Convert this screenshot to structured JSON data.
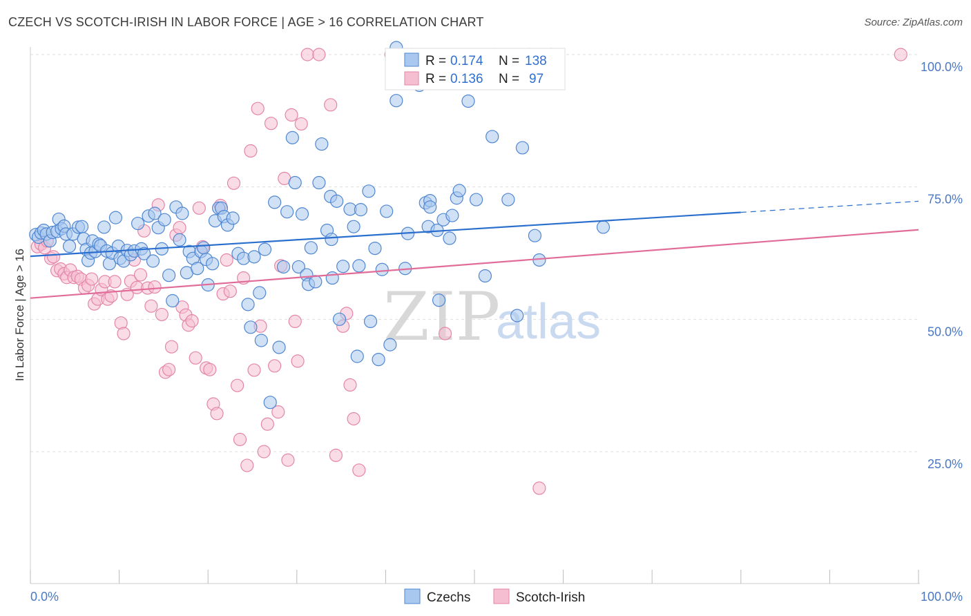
{
  "header": {
    "title": "CZECH VS SCOTCH-IRISH IN LABOR FORCE | AGE > 16 CORRELATION CHART",
    "source": "Source: ZipAtlas.com"
  },
  "watermark": {
    "zip": "ZIP",
    "atlas": "atlas"
  },
  "legend_top": {
    "rows": [
      {
        "r_label": "R = ",
        "r_value": "0.174",
        "n_label": "N = ",
        "n_value": "138"
      },
      {
        "r_label": "R = ",
        "r_value": "0.136",
        "n_label": "N = ",
        "n_value": "97"
      }
    ]
  },
  "legend_bottom": {
    "items": [
      "Czechs",
      "Scotch-Irish"
    ]
  },
  "colors": {
    "czech_fill": "#a9c8ef",
    "czech_stroke": "#4f86d1",
    "czech_line": "#2a6fce",
    "scotch_fill": "#f6bfd1",
    "scotch_stroke": "#e485a8",
    "scotch_line": "#e06c97",
    "grid": "#dddddd",
    "axis_text": "#4a78c2"
  },
  "chart_data": {
    "type": "scatter",
    "title": "CZECH VS SCOTCH-IRISH IN LABOR FORCE | AGE > 16 CORRELATION CHART",
    "xlabel": "",
    "ylabel": "In Labor Force | Age > 16",
    "xlim": [
      0,
      100
    ],
    "ylim": [
      0,
      104
    ],
    "x_tick_labels": [
      "0.0%",
      "100.0%"
    ],
    "y_ticks": [
      25,
      50,
      75,
      100
    ],
    "y_tick_labels": [
      "25.0%",
      "50.0%",
      "75.0%",
      "100.0%"
    ],
    "grid": "horizontal dashed",
    "legend_placement": "top-center and bottom-center",
    "series": [
      {
        "name": "Czechs",
        "r": 0.174,
        "n": 138,
        "trend": {
          "x": [
            0,
            80
          ],
          "y": [
            61.9,
            70.2
          ],
          "dashed_to": [
            100,
            72.3
          ]
        },
        "points": [
          [
            0.6,
            66
          ],
          [
            0.9,
            65.5
          ],
          [
            1.2,
            66.3
          ],
          [
            1.5,
            66.8
          ],
          [
            1.8,
            66.1
          ],
          [
            2.2,
            64.8
          ],
          [
            2.5,
            66.4
          ],
          [
            3,
            66.6
          ],
          [
            3.2,
            68.9
          ],
          [
            3.5,
            67.1
          ],
          [
            3.8,
            67.6
          ],
          [
            4,
            66.1
          ],
          [
            4.4,
            63.8
          ],
          [
            4.8,
            66.1
          ],
          [
            5.4,
            67.4
          ],
          [
            5.8,
            67.5
          ],
          [
            6,
            65.2
          ],
          [
            6.3,
            63.2
          ],
          [
            6.5,
            61.1
          ],
          [
            6.8,
            62.5
          ],
          [
            7,
            64.8
          ],
          [
            7.3,
            62.8
          ],
          [
            7.7,
            64.2
          ],
          [
            7.9,
            63.9
          ],
          [
            8.3,
            67.4
          ],
          [
            8.6,
            62.9
          ],
          [
            8.9,
            60.5
          ],
          [
            9.2,
            62.5
          ],
          [
            9.6,
            69.2
          ],
          [
            9.9,
            63.8
          ],
          [
            10.1,
            61.5
          ],
          [
            10.5,
            61
          ],
          [
            10.9,
            63
          ],
          [
            11.3,
            62.2
          ],
          [
            11.7,
            62.9
          ],
          [
            12.1,
            68.1
          ],
          [
            12.5,
            63.3
          ],
          [
            12.8,
            62.4
          ],
          [
            13.3,
            69.5
          ],
          [
            13.8,
            61
          ],
          [
            14,
            70
          ],
          [
            14.4,
            67.3
          ],
          [
            14.8,
            63.3
          ],
          [
            15.1,
            68.8
          ],
          [
            15.6,
            58.3
          ],
          [
            16,
            53.5
          ],
          [
            16.4,
            71.2
          ],
          [
            16.8,
            65
          ],
          [
            17.1,
            70
          ],
          [
            17.6,
            58.8
          ],
          [
            17.9,
            62.8
          ],
          [
            18.3,
            61.5
          ],
          [
            18.8,
            59.6
          ],
          [
            19.2,
            62.8
          ],
          [
            19.5,
            63.5
          ],
          [
            19.8,
            61.3
          ],
          [
            20,
            56.5
          ],
          [
            20.5,
            60.5
          ],
          [
            20.8,
            68.6
          ],
          [
            21.2,
            71
          ],
          [
            21.5,
            71
          ],
          [
            21.8,
            69.4
          ],
          [
            22.2,
            67.8
          ],
          [
            22.8,
            69.1
          ],
          [
            23.4,
            62.4
          ],
          [
            24,
            61.5
          ],
          [
            24.5,
            52.8
          ],
          [
            24.8,
            48.5
          ],
          [
            25.2,
            61.8
          ],
          [
            25.8,
            55
          ],
          [
            26,
            46
          ],
          [
            26.4,
            63.2
          ],
          [
            27,
            34.3
          ],
          [
            27.5,
            72.1
          ],
          [
            28,
            44.7
          ],
          [
            28.5,
            59.9
          ],
          [
            28.9,
            70.3
          ],
          [
            29.5,
            84.3
          ],
          [
            29.8,
            75.8
          ],
          [
            30.2,
            59.9
          ],
          [
            30.6,
            69.9
          ],
          [
            31.1,
            58.4
          ],
          [
            31.3,
            56.6
          ],
          [
            31.6,
            63.5
          ],
          [
            32.1,
            57.1
          ],
          [
            32.5,
            75.8
          ],
          [
            32.8,
            83.1
          ],
          [
            33.4,
            66.8
          ],
          [
            33.8,
            73.2
          ],
          [
            33.9,
            65.1
          ],
          [
            34,
            57.8
          ],
          [
            34.5,
            72.3
          ],
          [
            34.8,
            50
          ],
          [
            35.2,
            60
          ],
          [
            36,
            70.8
          ],
          [
            36.4,
            67.5
          ],
          [
            36.8,
            43
          ],
          [
            37,
            60.1
          ],
          [
            37.2,
            70.7
          ],
          [
            38.1,
            74.2
          ],
          [
            38.3,
            49.6
          ],
          [
            38.8,
            63.4
          ],
          [
            39.2,
            42.4
          ],
          [
            39.6,
            59.4
          ],
          [
            40.1,
            70.4
          ],
          [
            40.5,
            45.2
          ],
          [
            41.2,
            91.3
          ],
          [
            42.2,
            59.6
          ],
          [
            42.5,
            66.2
          ],
          [
            43.8,
            94.2
          ],
          [
            44.5,
            72
          ],
          [
            44.8,
            67.5
          ],
          [
            45,
            72.4
          ],
          [
            45,
            71.2
          ],
          [
            45.8,
            66.8
          ],
          [
            46,
            53.6
          ],
          [
            46.5,
            68.8
          ],
          [
            47.2,
            65.3
          ],
          [
            47.5,
            69.6
          ],
          [
            48,
            72.9
          ],
          [
            48.3,
            74.3
          ],
          [
            49.3,
            91.2
          ],
          [
            50.2,
            72.6
          ],
          [
            51.2,
            58.2
          ],
          [
            52,
            84.5
          ],
          [
            53.8,
            72.6
          ],
          [
            54.8,
            50.7
          ],
          [
            55.4,
            82.4
          ],
          [
            56.8,
            65.8
          ],
          [
            57.3,
            61.2
          ],
          [
            58.6,
            100
          ],
          [
            64.5,
            67.4
          ],
          [
            41.2,
            101.3
          ]
        ]
      },
      {
        "name": "Scotch-Irish",
        "r": 0.136,
        "n": 97,
        "trend": {
          "x": [
            0,
            100
          ],
          "y": [
            54,
            66.9
          ]
        },
        "points": [
          [
            0.8,
            63.7
          ],
          [
            1.2,
            64.2
          ],
          [
            1.6,
            63.5
          ],
          [
            1.9,
            64.8
          ],
          [
            2.3,
            61.5
          ],
          [
            2.6,
            61.8
          ],
          [
            3,
            59.2
          ],
          [
            3.4,
            59.5
          ],
          [
            3.8,
            58.6
          ],
          [
            4.1,
            57.9
          ],
          [
            4.5,
            59.3
          ],
          [
            4.9,
            57.9
          ],
          [
            5.3,
            58.1
          ],
          [
            5.7,
            57.6
          ],
          [
            6.1,
            55.9
          ],
          [
            6.5,
            56.4
          ],
          [
            6.9,
            57.6
          ],
          [
            7.2,
            52.9
          ],
          [
            7.6,
            53.8
          ],
          [
            8,
            55.6
          ],
          [
            8.4,
            57.1
          ],
          [
            8.7,
            53.8
          ],
          [
            9.1,
            54.4
          ],
          [
            9.5,
            57.1
          ],
          [
            10.2,
            49.3
          ],
          [
            10.5,
            47.3
          ],
          [
            10.9,
            54.7
          ],
          [
            11.3,
            57.2
          ],
          [
            11.7,
            61.2
          ],
          [
            12,
            56
          ],
          [
            12.4,
            58.4
          ],
          [
            12.8,
            66.7
          ],
          [
            13.2,
            55.9
          ],
          [
            13.6,
            52.5
          ],
          [
            14,
            56.1
          ],
          [
            14.4,
            71.6
          ],
          [
            14.8,
            50.9
          ],
          [
            15.2,
            40
          ],
          [
            15.6,
            40.5
          ],
          [
            15.9,
            44.8
          ],
          [
            16.4,
            65.9
          ],
          [
            16.8,
            67.3
          ],
          [
            17.1,
            52.3
          ],
          [
            17.5,
            50.8
          ],
          [
            17.8,
            48.9
          ],
          [
            18.2,
            49.7
          ],
          [
            18.6,
            42.7
          ],
          [
            19,
            71
          ],
          [
            19.4,
            63.7
          ],
          [
            19.8,
            40.8
          ],
          [
            20.2,
            40.5
          ],
          [
            20.6,
            34
          ],
          [
            21,
            32.2
          ],
          [
            21.4,
            71.5
          ],
          [
            21.7,
            54.8
          ],
          [
            22.1,
            61.2
          ],
          [
            22.5,
            55.3
          ],
          [
            22.9,
            75.7
          ],
          [
            23.3,
            37.5
          ],
          [
            23.6,
            27.3
          ],
          [
            24,
            57.8
          ],
          [
            24.4,
            22.4
          ],
          [
            24.8,
            81.8
          ],
          [
            25.2,
            40.4
          ],
          [
            25.6,
            89.8
          ],
          [
            25.9,
            48.7
          ],
          [
            26.3,
            25
          ],
          [
            26.7,
            30.2
          ],
          [
            27.1,
            87
          ],
          [
            27.5,
            41.2
          ],
          [
            27.9,
            32.5
          ],
          [
            28.2,
            60.1
          ],
          [
            28.6,
            76.6
          ],
          [
            29,
            23.4
          ],
          [
            29.4,
            88.6
          ],
          [
            29.8,
            49.6
          ],
          [
            30.1,
            42.1
          ],
          [
            30.5,
            86.9
          ],
          [
            31.2,
            100
          ],
          [
            32.5,
            100
          ],
          [
            33.8,
            90.5
          ],
          [
            34.4,
            24.3
          ],
          [
            35.2,
            48.7
          ],
          [
            35.6,
            51.1
          ],
          [
            36,
            37.6
          ],
          [
            36.4,
            31.2
          ],
          [
            37,
            21.5
          ],
          [
            40.6,
            100
          ],
          [
            42.4,
            100
          ],
          [
            43,
            100
          ],
          [
            46.7,
            47.3
          ],
          [
            57.3,
            18.1
          ],
          [
            98,
            100
          ],
          [
            52.2,
            100
          ],
          [
            56.2,
            100
          ]
        ]
      }
    ]
  }
}
